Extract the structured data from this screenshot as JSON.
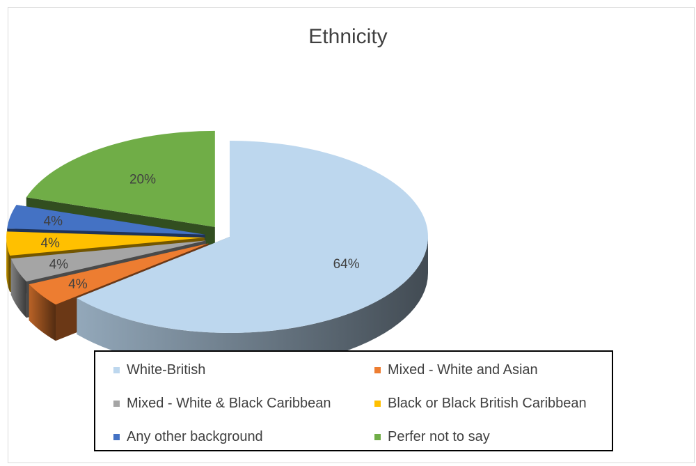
{
  "chart_data": {
    "type": "pie",
    "title": "Ethnicity",
    "categories": [
      "White-British",
      "Mixed - White and Asian",
      "Mixed - White & Black Caribbean",
      "Black or Black British Caribbean",
      "Any other background",
      "Perfer not to say"
    ],
    "values": [
      64,
      4,
      4,
      4,
      4,
      20
    ],
    "data_labels": [
      "64%",
      "4%",
      "4%",
      "4%",
      "4%",
      "20%"
    ],
    "colors": [
      "#bdd7ee",
      "#ed7d31",
      "#a5a5a5",
      "#ffc000",
      "#4472c4",
      "#70ad47"
    ],
    "exploded": true,
    "three_d": true,
    "legend_position": "bottom"
  }
}
